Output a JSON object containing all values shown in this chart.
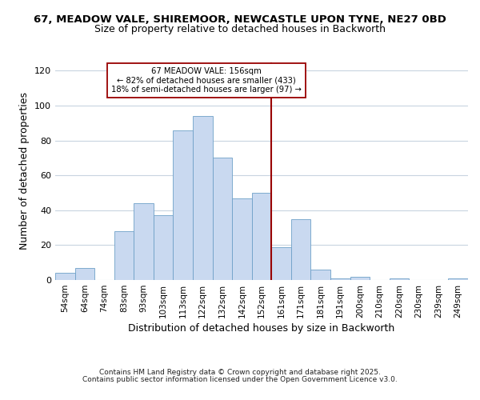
{
  "title_line1": "67, MEADOW VALE, SHIREMOOR, NEWCASTLE UPON TYNE, NE27 0BD",
  "title_line2": "Size of property relative to detached houses in Backworth",
  "xlabel": "Distribution of detached houses by size in Backworth",
  "ylabel": "Number of detached properties",
  "bin_labels": [
    "54sqm",
    "64sqm",
    "74sqm",
    "83sqm",
    "93sqm",
    "103sqm",
    "113sqm",
    "122sqm",
    "132sqm",
    "142sqm",
    "152sqm",
    "161sqm",
    "171sqm",
    "181sqm",
    "191sqm",
    "200sqm",
    "210sqm",
    "220sqm",
    "230sqm",
    "239sqm",
    "249sqm"
  ],
  "bar_heights": [
    4,
    7,
    0,
    28,
    44,
    37,
    86,
    94,
    70,
    47,
    50,
    19,
    35,
    6,
    1,
    2,
    0,
    1,
    0,
    0,
    1
  ],
  "bar_color": "#c9d9f0",
  "bar_edge_color": "#6fa0c8",
  "vline_x": 10.5,
  "vline_color": "#990000",
  "annotation_title": "67 MEADOW VALE: 156sqm",
  "annotation_line2": "← 82% of detached houses are smaller (433)",
  "annotation_line3": "18% of semi-detached houses are larger (97) →",
  "annotation_box_edge": "#990000",
  "ylim": [
    0,
    125
  ],
  "yticks": [
    0,
    20,
    40,
    60,
    80,
    100,
    120
  ],
  "footer1": "Contains HM Land Registry data © Crown copyright and database right 2025.",
  "footer2": "Contains public sector information licensed under the Open Government Licence v3.0.",
  "background_color": "#ffffff",
  "grid_color": "#c8d4e0"
}
